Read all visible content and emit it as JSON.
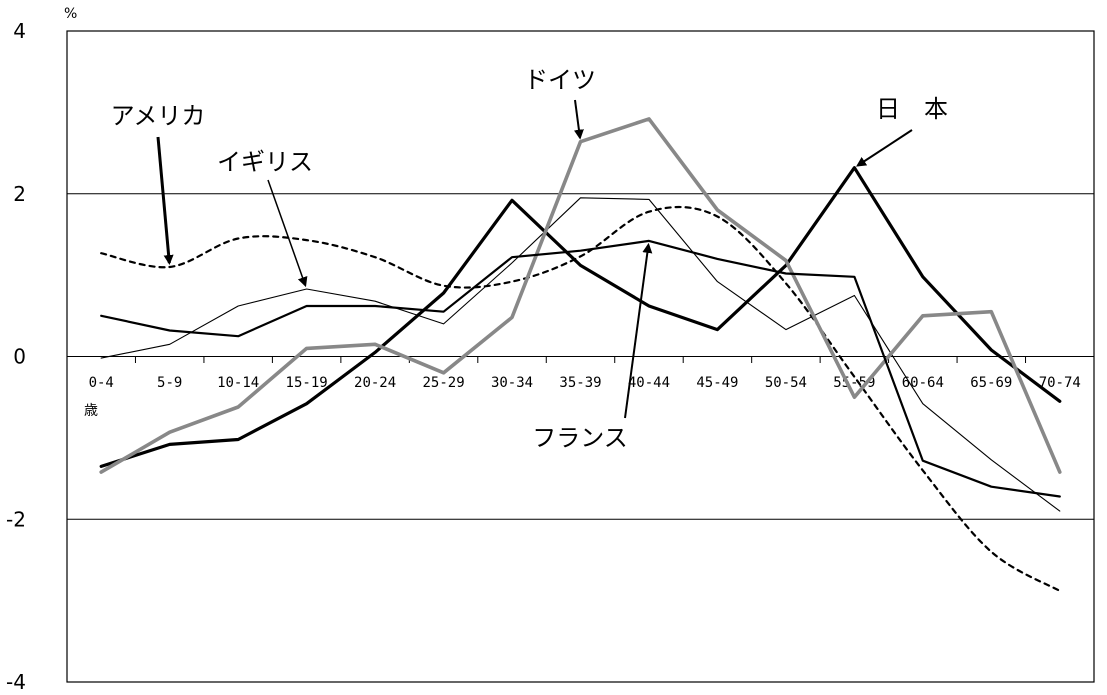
{
  "chart_data": {
    "type": "line",
    "title": "",
    "xlabel": "",
    "ylabel": "",
    "y_unit": "%",
    "x_unit": "歳",
    "ylim": [
      -4,
      4
    ],
    "yticks": [
      4,
      2,
      0,
      -2,
      -4
    ],
    "grid": "horizontal",
    "legend": "none",
    "categories": [
      "0-4",
      "5-9",
      "10-14",
      "15-19",
      "20-24",
      "25-29",
      "30-34",
      "35-39",
      "40-44",
      "45-49",
      "50-54",
      "55-59",
      "60-64",
      "65-69",
      "70-74"
    ],
    "series": [
      {
        "name": "日　本",
        "style": "thick",
        "color": "#000000",
        "values": [
          -1.35,
          -1.08,
          -1.02,
          -0.58,
          0.05,
          0.78,
          1.92,
          1.12,
          0.62,
          0.33,
          1.12,
          2.32,
          0.98,
          0.08,
          -0.55
        ]
      },
      {
        "name": "アメリカ",
        "style": "dotted",
        "color": "#000000",
        "values": [
          1.27,
          1.1,
          1.45,
          1.43,
          1.22,
          0.87,
          0.92,
          1.23,
          1.78,
          1.72,
          0.9,
          -0.25,
          -1.4,
          -2.4,
          -2.88
        ]
      },
      {
        "name": "イギリス",
        "style": "thin",
        "color": "#000000",
        "values": [
          -0.02,
          0.15,
          0.62,
          0.83,
          0.68,
          0.4,
          1.15,
          1.95,
          1.93,
          0.92,
          0.33,
          0.75,
          -0.58,
          -1.27,
          -1.9
        ]
      },
      {
        "name": "ドイツ",
        "style": "gray",
        "color": "#888888",
        "values": [
          -1.42,
          -0.93,
          -0.62,
          0.1,
          0.15,
          -0.2,
          0.48,
          2.64,
          2.92,
          1.8,
          1.18,
          -0.5,
          0.5,
          0.55,
          -1.42
        ]
      },
      {
        "name": "フランス",
        "style": "medium",
        "color": "#000000",
        "values": [
          0.5,
          0.32,
          0.25,
          0.62,
          0.62,
          0.55,
          1.22,
          1.3,
          1.42,
          1.2,
          1.02,
          0.98,
          -1.28,
          -1.6,
          -1.72
        ]
      }
    ],
    "annotations": [
      {
        "text": "日　本",
        "target_series": "日　本",
        "target_index": 11
      },
      {
        "text": "アメリカ",
        "target_series": "アメリカ",
        "target_index": 1
      },
      {
        "text": "イギリス",
        "target_series": "イギリス",
        "target_index": 3
      },
      {
        "text": "ドイツ",
        "target_series": "ドイツ",
        "target_index": 7
      },
      {
        "text": "フランス",
        "target_series": "フランス",
        "target_index": 8
      }
    ]
  }
}
